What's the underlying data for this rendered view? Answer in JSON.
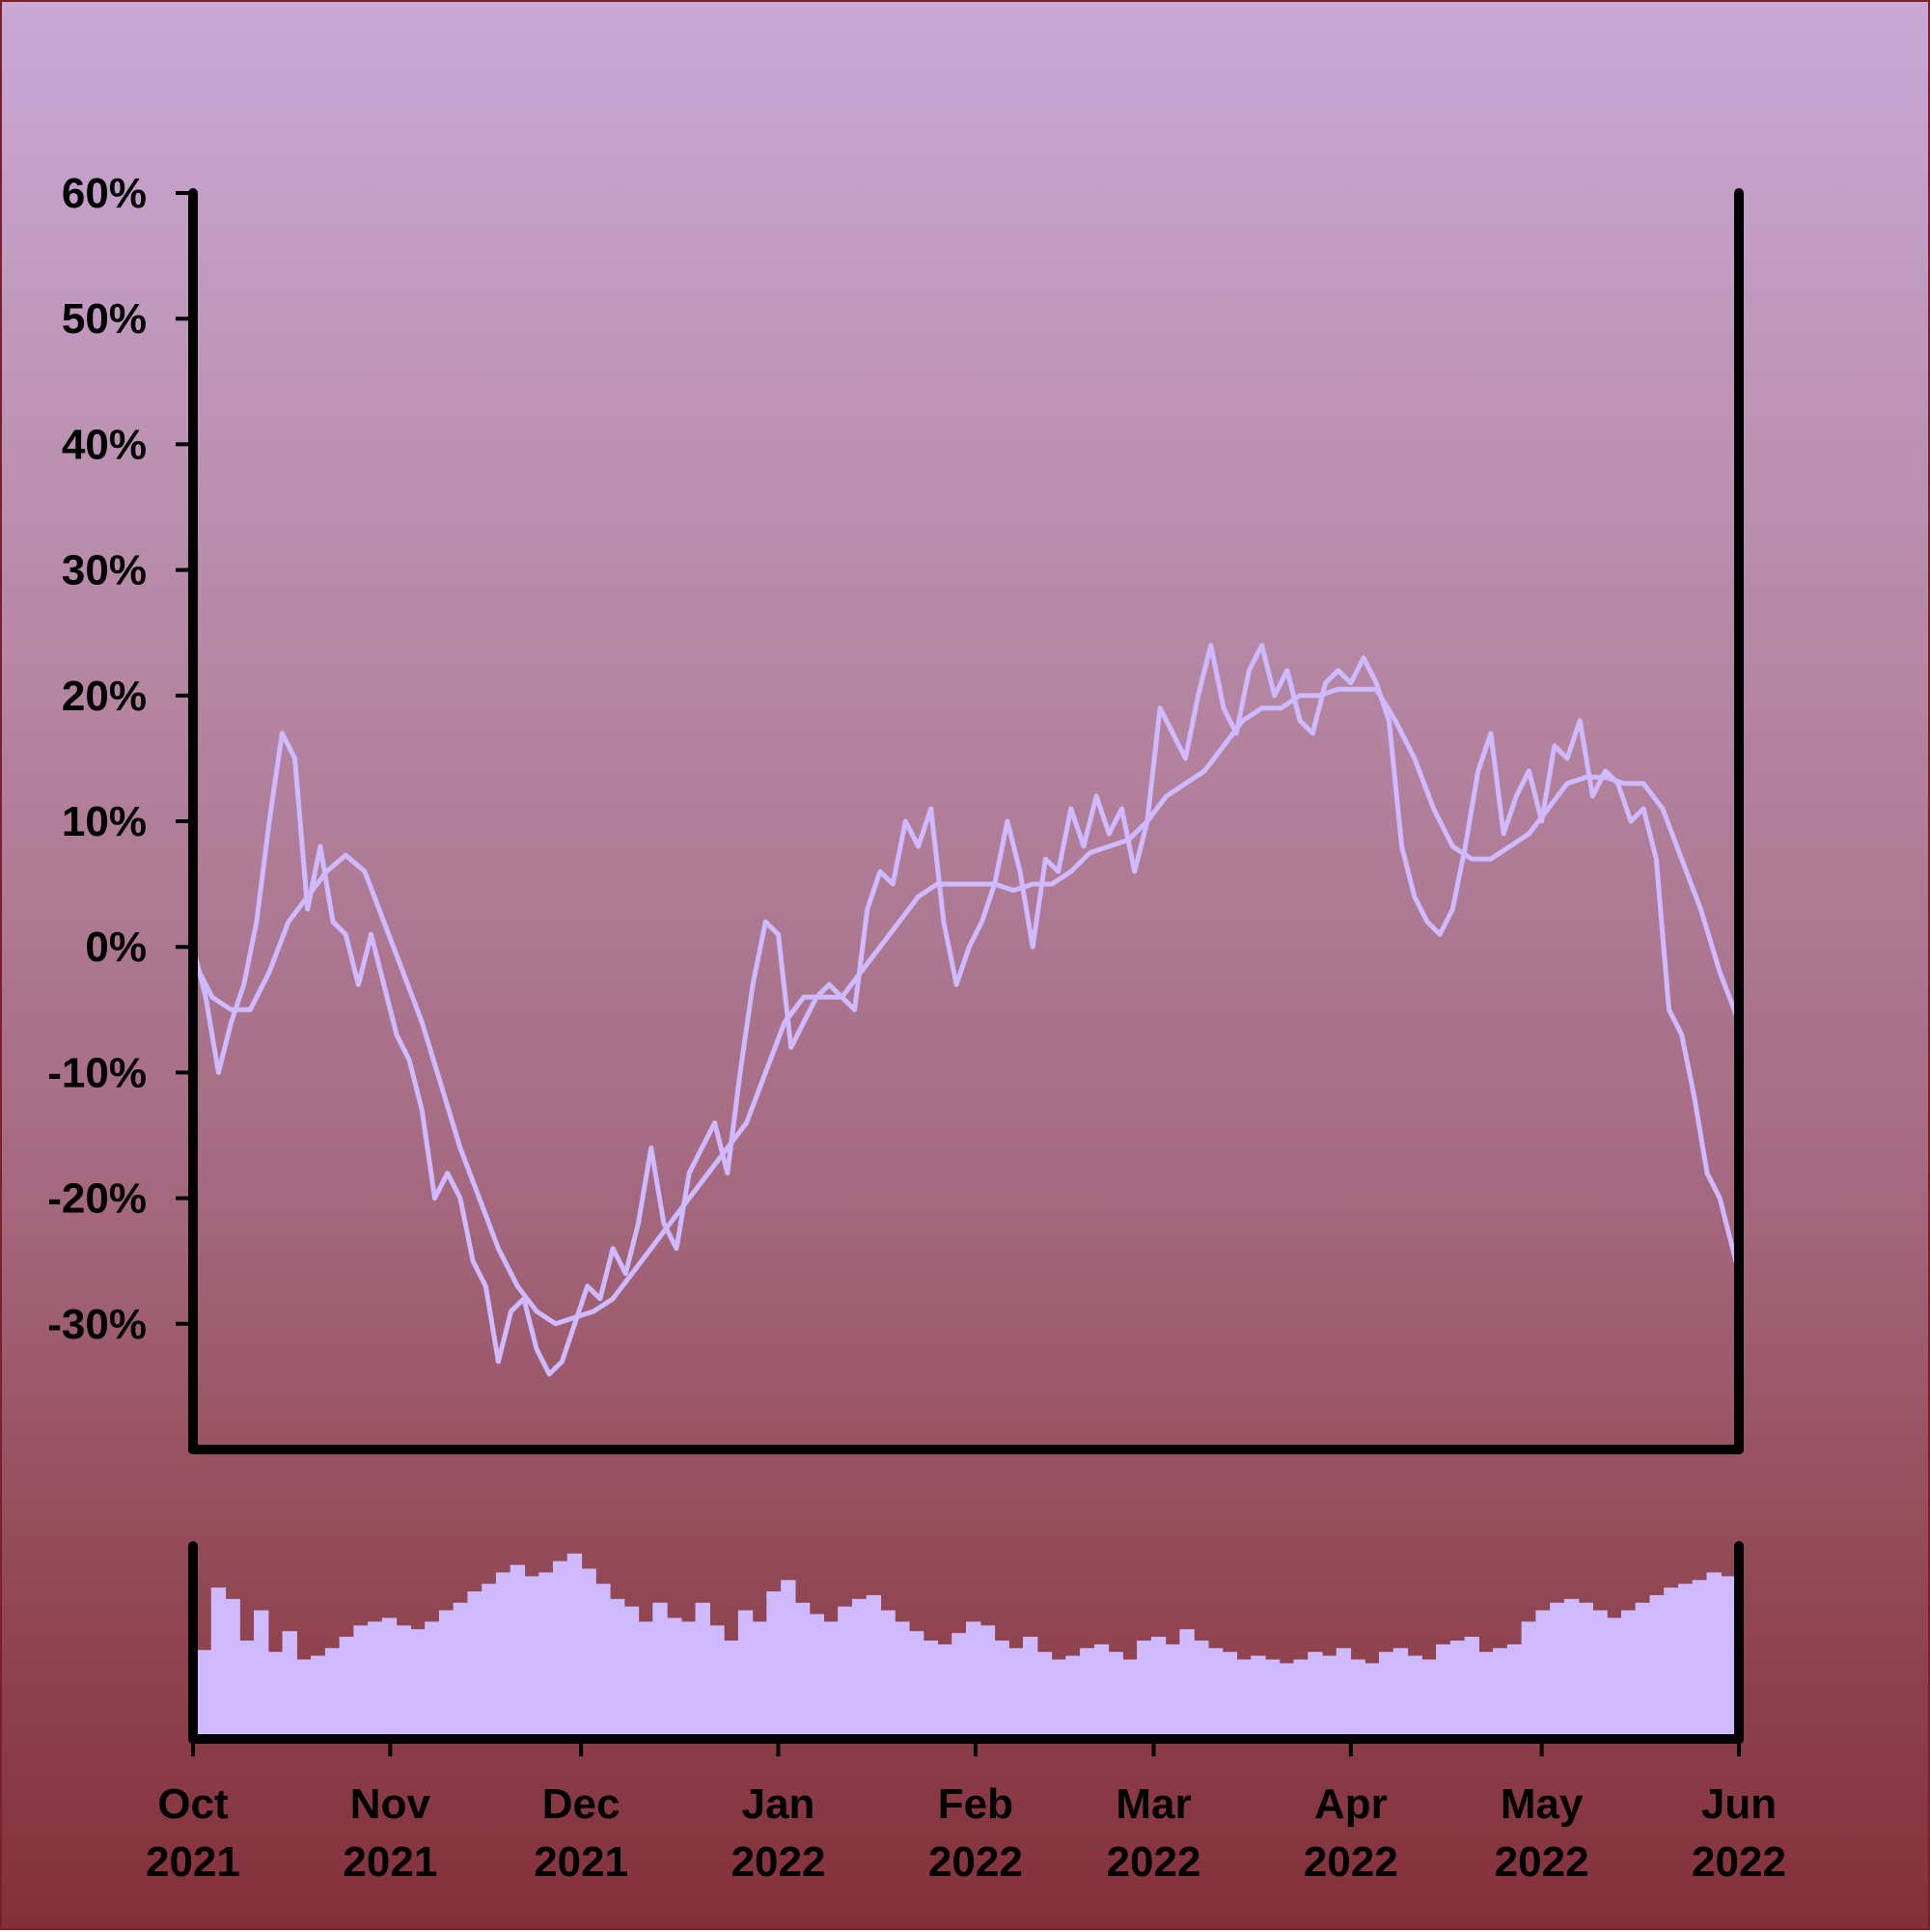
{
  "chart_data": {
    "type": "line",
    "x_range": [
      "2021-10-01",
      "2022-06-01"
    ],
    "y_range": [
      -40,
      60
    ],
    "y_ticks": [
      60,
      50,
      40,
      30,
      20,
      10,
      0,
      -10,
      -20,
      -30
    ],
    "y_tick_labels": [
      "60%",
      "50%",
      "40%",
      "30%",
      "20%",
      "10%",
      "0%",
      "-10%",
      "-20%",
      "-30%"
    ],
    "x_ticks": [
      {
        "date": "2021-10-01",
        "month": "Oct",
        "year": "2021"
      },
      {
        "date": "2021-11-01",
        "month": "Nov",
        "year": "2021"
      },
      {
        "date": "2021-12-01",
        "month": "Dec",
        "year": "2021"
      },
      {
        "date": "2022-01-01",
        "month": "Jan",
        "year": "2022"
      },
      {
        "date": "2022-02-01",
        "month": "Feb",
        "year": "2022"
      },
      {
        "date": "2022-03-01",
        "month": "Mar",
        "year": "2022"
      },
      {
        "date": "2022-04-01",
        "month": "Apr",
        "year": "2022"
      },
      {
        "date": "2022-05-01",
        "month": "May",
        "year": "2022"
      },
      {
        "date": "2022-06-01",
        "month": "Jun",
        "year": "2022"
      }
    ],
    "series_color": "#cfbaff",
    "grid": false,
    "series": [
      {
        "values": [
          [
            "2021-10-01",
            0
          ],
          [
            "2021-10-03",
            -4
          ],
          [
            "2021-10-05",
            -10
          ],
          [
            "2021-10-07",
            -6
          ],
          [
            "2021-10-09",
            -3
          ],
          [
            "2021-10-11",
            2
          ],
          [
            "2021-10-13",
            10
          ],
          [
            "2021-10-15",
            17
          ],
          [
            "2021-10-17",
            15
          ],
          [
            "2021-10-19",
            3
          ],
          [
            "2021-10-21",
            8
          ],
          [
            "2021-10-23",
            2
          ],
          [
            "2021-10-25",
            1
          ],
          [
            "2021-10-27",
            -3
          ],
          [
            "2021-10-29",
            1
          ],
          [
            "2021-10-31",
            -3
          ],
          [
            "2021-11-02",
            -7
          ],
          [
            "2021-11-04",
            -9
          ],
          [
            "2021-11-06",
            -13
          ],
          [
            "2021-11-08",
            -20
          ],
          [
            "2021-11-10",
            -18
          ],
          [
            "2021-11-12",
            -20
          ],
          [
            "2021-11-14",
            -25
          ],
          [
            "2021-11-16",
            -27
          ],
          [
            "2021-11-18",
            -33
          ],
          [
            "2021-11-20",
            -29
          ],
          [
            "2021-11-22",
            -28
          ],
          [
            "2021-11-24",
            -32
          ],
          [
            "2021-11-26",
            -34
          ],
          [
            "2021-11-28",
            -33
          ],
          [
            "2021-11-30",
            -30
          ],
          [
            "2021-12-02",
            -27
          ],
          [
            "2021-12-04",
            -28
          ],
          [
            "2021-12-06",
            -24
          ],
          [
            "2021-12-08",
            -26
          ],
          [
            "2021-12-10",
            -22
          ],
          [
            "2021-12-12",
            -16
          ],
          [
            "2021-12-14",
            -22
          ],
          [
            "2021-12-16",
            -24
          ],
          [
            "2021-12-18",
            -18
          ],
          [
            "2021-12-20",
            -16
          ],
          [
            "2021-12-22",
            -14
          ],
          [
            "2021-12-24",
            -18
          ],
          [
            "2021-12-26",
            -10
          ],
          [
            "2021-12-28",
            -3
          ],
          [
            "2021-12-30",
            2
          ],
          [
            "2022-01-01",
            1
          ],
          [
            "2022-01-03",
            -8
          ],
          [
            "2022-01-05",
            -6
          ],
          [
            "2022-01-07",
            -4
          ],
          [
            "2022-01-09",
            -3
          ],
          [
            "2022-01-11",
            -4
          ],
          [
            "2022-01-13",
            -5
          ],
          [
            "2022-01-15",
            3
          ],
          [
            "2022-01-17",
            6
          ],
          [
            "2022-01-19",
            5
          ],
          [
            "2022-01-21",
            10
          ],
          [
            "2022-01-23",
            8
          ],
          [
            "2022-01-25",
            11
          ],
          [
            "2022-01-27",
            2
          ],
          [
            "2022-01-29",
            -3
          ],
          [
            "2022-01-31",
            0
          ],
          [
            "2022-02-02",
            2
          ],
          [
            "2022-02-04",
            5
          ],
          [
            "2022-02-06",
            10
          ],
          [
            "2022-02-08",
            6
          ],
          [
            "2022-02-10",
            0
          ],
          [
            "2022-02-12",
            7
          ],
          [
            "2022-02-14",
            6
          ],
          [
            "2022-02-16",
            11
          ],
          [
            "2022-02-18",
            8
          ],
          [
            "2022-02-20",
            12
          ],
          [
            "2022-02-22",
            9
          ],
          [
            "2022-02-24",
            11
          ],
          [
            "2022-02-26",
            6
          ],
          [
            "2022-02-28",
            10
          ],
          [
            "2022-03-02",
            19
          ],
          [
            "2022-03-04",
            17
          ],
          [
            "2022-03-06",
            15
          ],
          [
            "2022-03-08",
            20
          ],
          [
            "2022-03-10",
            24
          ],
          [
            "2022-03-12",
            19
          ],
          [
            "2022-03-14",
            17
          ],
          [
            "2022-03-16",
            22
          ],
          [
            "2022-03-18",
            24
          ],
          [
            "2022-03-20",
            20
          ],
          [
            "2022-03-22",
            22
          ],
          [
            "2022-03-24",
            18
          ],
          [
            "2022-03-26",
            17
          ],
          [
            "2022-03-28",
            21
          ],
          [
            "2022-03-30",
            22
          ],
          [
            "2022-04-01",
            21
          ],
          [
            "2022-04-03",
            23
          ],
          [
            "2022-04-05",
            21
          ],
          [
            "2022-04-07",
            18
          ],
          [
            "2022-04-09",
            8
          ],
          [
            "2022-04-11",
            4
          ],
          [
            "2022-04-13",
            2
          ],
          [
            "2022-04-15",
            1
          ],
          [
            "2022-04-17",
            3
          ],
          [
            "2022-04-19",
            8
          ],
          [
            "2022-04-21",
            14
          ],
          [
            "2022-04-23",
            17
          ],
          [
            "2022-04-25",
            9
          ],
          [
            "2022-04-27",
            12
          ],
          [
            "2022-04-29",
            14
          ],
          [
            "2022-05-01",
            10
          ],
          [
            "2022-05-03",
            16
          ],
          [
            "2022-05-05",
            15
          ],
          [
            "2022-05-07",
            18
          ],
          [
            "2022-05-09",
            12
          ],
          [
            "2022-05-11",
            14
          ],
          [
            "2022-05-13",
            13
          ],
          [
            "2022-05-15",
            10
          ],
          [
            "2022-05-17",
            11
          ],
          [
            "2022-05-19",
            7
          ],
          [
            "2022-05-21",
            -5
          ],
          [
            "2022-05-23",
            -7
          ],
          [
            "2022-05-25",
            -12
          ],
          [
            "2022-05-27",
            -18
          ],
          [
            "2022-05-29",
            -20
          ],
          [
            "2022-06-01",
            -26
          ]
        ]
      },
      {
        "values": [
          [
            "2021-10-01",
            -1
          ],
          [
            "2021-10-04",
            -4
          ],
          [
            "2021-10-07",
            -5
          ],
          [
            "2021-10-10",
            -5
          ],
          [
            "2021-10-13",
            -2
          ],
          [
            "2021-10-16",
            2
          ],
          [
            "2021-10-19",
            4
          ],
          [
            "2021-10-22",
            6
          ],
          [
            "2021-10-25",
            7.3
          ],
          [
            "2021-10-28",
            6
          ],
          [
            "2021-10-31",
            2
          ],
          [
            "2021-11-03",
            -2
          ],
          [
            "2021-11-06",
            -6
          ],
          [
            "2021-11-09",
            -11
          ],
          [
            "2021-11-12",
            -16
          ],
          [
            "2021-11-15",
            -20
          ],
          [
            "2021-11-18",
            -24
          ],
          [
            "2021-11-21",
            -27
          ],
          [
            "2021-11-24",
            -29
          ],
          [
            "2021-11-27",
            -30
          ],
          [
            "2021-11-30",
            -29.5
          ],
          [
            "2021-12-03",
            -29
          ],
          [
            "2021-12-06",
            -28
          ],
          [
            "2021-12-09",
            -26
          ],
          [
            "2021-12-12",
            -24
          ],
          [
            "2021-12-15",
            -22
          ],
          [
            "2021-12-18",
            -20
          ],
          [
            "2021-12-21",
            -18
          ],
          [
            "2021-12-24",
            -16
          ],
          [
            "2021-12-27",
            -14
          ],
          [
            "2021-12-30",
            -10
          ],
          [
            "2022-01-02",
            -6
          ],
          [
            "2022-01-05",
            -4
          ],
          [
            "2022-01-08",
            -4
          ],
          [
            "2022-01-11",
            -4
          ],
          [
            "2022-01-14",
            -2
          ],
          [
            "2022-01-17",
            0
          ],
          [
            "2022-01-20",
            2
          ],
          [
            "2022-01-23",
            4
          ],
          [
            "2022-01-26",
            5
          ],
          [
            "2022-01-29",
            5
          ],
          [
            "2022-02-01",
            5
          ],
          [
            "2022-02-04",
            5
          ],
          [
            "2022-02-07",
            4.5
          ],
          [
            "2022-02-10",
            5
          ],
          [
            "2022-02-13",
            5
          ],
          [
            "2022-02-16",
            6
          ],
          [
            "2022-02-19",
            7.5
          ],
          [
            "2022-02-22",
            8
          ],
          [
            "2022-02-25",
            8.5
          ],
          [
            "2022-02-28",
            10
          ],
          [
            "2022-03-03",
            12
          ],
          [
            "2022-03-06",
            13
          ],
          [
            "2022-03-09",
            14
          ],
          [
            "2022-03-12",
            16
          ],
          [
            "2022-03-15",
            18
          ],
          [
            "2022-03-18",
            19
          ],
          [
            "2022-03-21",
            19
          ],
          [
            "2022-03-24",
            20
          ],
          [
            "2022-03-27",
            20
          ],
          [
            "2022-03-30",
            20.5
          ],
          [
            "2022-04-02",
            20.5
          ],
          [
            "2022-04-05",
            20.5
          ],
          [
            "2022-04-08",
            18
          ],
          [
            "2022-04-11",
            15
          ],
          [
            "2022-04-14",
            11
          ],
          [
            "2022-04-17",
            8
          ],
          [
            "2022-04-20",
            7
          ],
          [
            "2022-04-23",
            7
          ],
          [
            "2022-04-26",
            8
          ],
          [
            "2022-04-29",
            9
          ],
          [
            "2022-05-02",
            11
          ],
          [
            "2022-05-05",
            13
          ],
          [
            "2022-05-08",
            13.5
          ],
          [
            "2022-05-11",
            13.5
          ],
          [
            "2022-05-14",
            13
          ],
          [
            "2022-05-17",
            13
          ],
          [
            "2022-05-20",
            11
          ],
          [
            "2022-05-23",
            7
          ],
          [
            "2022-05-26",
            3
          ],
          [
            "2022-05-29",
            -2
          ],
          [
            "2022-06-01",
            -6
          ]
        ]
      }
    ],
    "volume": {
      "type": "bar",
      "values": [
        0.45,
        0.78,
        0.72,
        0.5,
        0.66,
        0.44,
        0.55,
        0.4,
        0.42,
        0.46,
        0.52,
        0.58,
        0.6,
        0.62,
        0.58,
        0.56,
        0.6,
        0.66,
        0.7,
        0.76,
        0.8,
        0.86,
        0.9,
        0.84,
        0.86,
        0.92,
        0.96,
        0.88,
        0.8,
        0.72,
        0.68,
        0.6,
        0.7,
        0.62,
        0.6,
        0.7,
        0.58,
        0.5,
        0.66,
        0.6,
        0.76,
        0.82,
        0.7,
        0.64,
        0.6,
        0.68,
        0.72,
        0.74,
        0.66,
        0.6,
        0.55,
        0.5,
        0.48,
        0.54,
        0.6,
        0.58,
        0.5,
        0.46,
        0.52,
        0.44,
        0.4,
        0.42,
        0.46,
        0.48,
        0.44,
        0.4,
        0.5,
        0.52,
        0.48,
        0.56,
        0.5,
        0.46,
        0.44,
        0.4,
        0.42,
        0.4,
        0.38,
        0.4,
        0.44,
        0.42,
        0.46,
        0.4,
        0.38,
        0.44,
        0.46,
        0.42,
        0.4,
        0.48,
        0.5,
        0.52,
        0.44,
        0.46,
        0.48,
        0.6,
        0.66,
        0.7,
        0.72,
        0.7,
        0.66,
        0.62,
        0.66,
        0.7,
        0.74,
        0.78,
        0.8,
        0.82,
        0.86,
        0.84
      ]
    }
  }
}
